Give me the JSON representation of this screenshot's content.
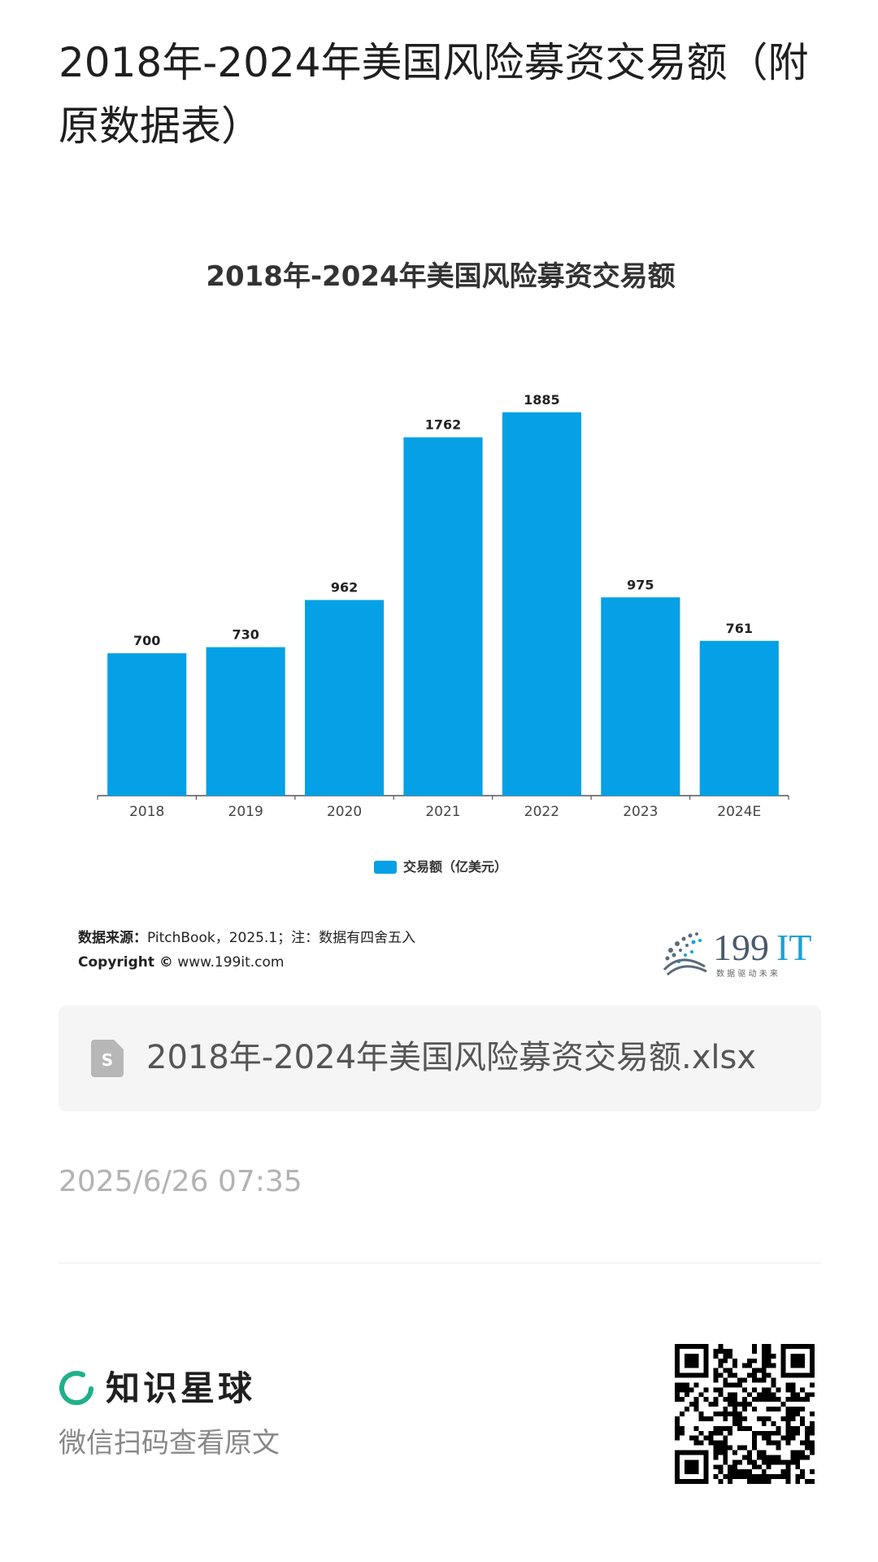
{
  "post": {
    "title": "2018年-2024年美国风险募资交易额（附原数据表）",
    "file_name": "2018年-2024年美国风险募资交易额.xlsx",
    "timestamp": "2025/6/26 07:35"
  },
  "chart_data": {
    "type": "bar",
    "title": "2018年-2024年美国风险募资交易额",
    "categories": [
      "2018",
      "2019",
      "2020",
      "2021",
      "2022",
      "2023",
      "2024E"
    ],
    "series": [
      {
        "name": "交易额（亿美元）",
        "values": [
          700,
          730,
          962,
          1762,
          1885,
          975,
          761
        ]
      }
    ],
    "ylim": [
      0,
      2000
    ],
    "grid": false,
    "legend": "bottom-center",
    "color": "#05a0e6"
  },
  "source": {
    "label": "数据来源：",
    "text": "PitchBook，2025.1；注：数据有四舍五入",
    "copyright_label": "Copyright ©",
    "copyright_text": " www.199it.com"
  },
  "logo": {
    "text": "199IT",
    "tagline": "数 据 驱 动 未 来"
  },
  "footer": {
    "brand": "知识星球",
    "subtitle": "微信扫码查看原文",
    "brand_color": "#1fb08a"
  }
}
